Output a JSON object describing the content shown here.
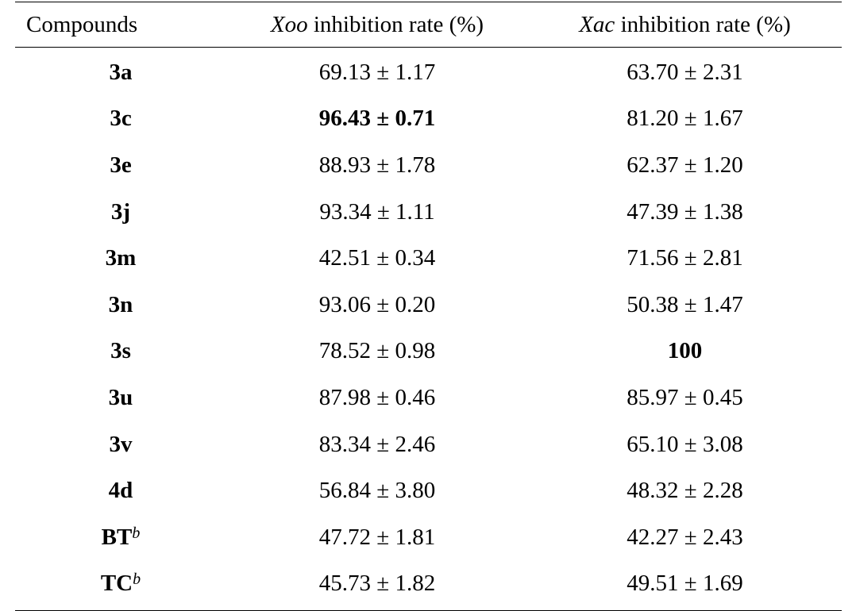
{
  "header": {
    "col1": "Compounds",
    "col2_italic": "Xoo",
    "col2_rest": " inhibition rate (%)",
    "col3_italic": "Xac",
    "col3_rest": " inhibition rate (%)"
  },
  "rows": [
    {
      "compound": "3a",
      "note": "",
      "xoo": "69.13 ± 1.17",
      "xac": "63.70 ± 2.31"
    },
    {
      "compound": "3c",
      "note": "",
      "xoo": "96.43 ± 0.71",
      "xac": "81.20 ± 1.67"
    },
    {
      "compound": "3e",
      "note": "",
      "xoo": "88.93 ± 1.78",
      "xac": "62.37 ± 1.20"
    },
    {
      "compound": "3j",
      "note": "",
      "xoo": "93.34 ± 1.11",
      "xac": "47.39 ± 1.38"
    },
    {
      "compound": "3m",
      "note": "",
      "xoo": "42.51 ± 0.34",
      "xac": "71.56 ± 2.81"
    },
    {
      "compound": "3n",
      "note": "",
      "xoo": "93.06 ± 0.20",
      "xac": "50.38 ± 1.47"
    },
    {
      "compound": "3s",
      "note": "",
      "xoo": "78.52 ± 0.98",
      "xac": "100"
    },
    {
      "compound": "3u",
      "note": "",
      "xoo": "87.98 ± 0.46",
      "xac": "85.97 ± 0.45"
    },
    {
      "compound": "3v",
      "note": "",
      "xoo": "83.34 ± 2.46",
      "xac": "65.10 ± 3.08"
    },
    {
      "compound": "4d",
      "note": "",
      "xoo": "56.84 ± 3.80",
      "xac": "48.32 ± 2.28"
    },
    {
      "compound": "BT",
      "note": "b",
      "xoo": "47.72 ± 1.81",
      "xac": "42.27 ± 2.43"
    },
    {
      "compound": "TC",
      "note": "b",
      "xoo": "45.73 ± 1.82",
      "xac": "49.51 ± 1.69"
    }
  ]
}
